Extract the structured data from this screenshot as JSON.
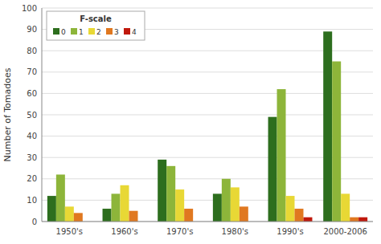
{
  "chart_data": {
    "type": "bar",
    "categories": [
      "1950's",
      "1960's",
      "1970's",
      "1980's",
      "1990's",
      "2000-2006"
    ],
    "series": [
      {
        "name": "0",
        "color": "#2d6e1e",
        "values": [
          12,
          6,
          29,
          13,
          49,
          89
        ]
      },
      {
        "name": "1",
        "color": "#8db53a",
        "values": [
          22,
          13,
          26,
          20,
          62,
          75
        ]
      },
      {
        "name": "2",
        "color": "#e8d835",
        "values": [
          7,
          17,
          15,
          16,
          12,
          13
        ]
      },
      {
        "name": "3",
        "color": "#e07820",
        "values": [
          4,
          5,
          6,
          7,
          6,
          2
        ]
      },
      {
        "name": "4",
        "color": "#c0180c",
        "values": [
          0,
          0,
          0,
          0,
          2,
          2
        ]
      }
    ],
    "ylabel": "Number of Tomadoes",
    "legend_title": "F-scale",
    "ylim": [
      0,
      100
    ],
    "yticks": [
      0,
      10,
      20,
      30,
      40,
      50,
      60,
      70,
      80,
      90,
      100
    ],
    "grid": true,
    "legend": "upper left"
  }
}
